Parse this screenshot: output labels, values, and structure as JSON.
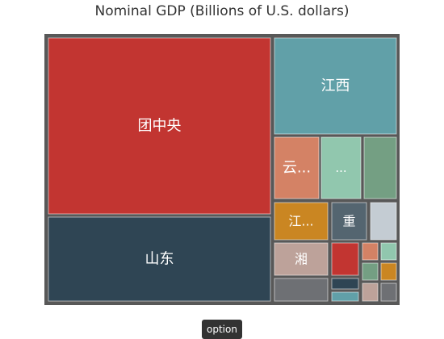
{
  "chart_data": {
    "type": "treemap",
    "title": "Nominal GDP (Billions of U.S. dollars)",
    "tiles": [
      {
        "label": "团中央",
        "color": "#c23531"
      },
      {
        "label": "山东",
        "color": "#2f4554"
      },
      {
        "label": "江西",
        "color": "#61a0a8"
      },
      {
        "label": "云...",
        "color": "#d48265"
      },
      {
        "label": "...",
        "color": "#91c7ae"
      },
      {
        "label": "",
        "color": "#749f83"
      },
      {
        "label": "江...",
        "color": "#ca8622"
      },
      {
        "label": "重",
        "color": "#546570"
      },
      {
        "label": "",
        "color": "#c4ccd3"
      },
      {
        "label": "湘",
        "color": "#bda29a"
      },
      {
        "label": "",
        "color": "#c23531"
      },
      {
        "label": "",
        "color": "#d48265"
      },
      {
        "label": "",
        "color": "#91c7ae"
      },
      {
        "label": "",
        "color": "#749f83"
      },
      {
        "label": "",
        "color": "#ca8622"
      },
      {
        "label": "",
        "color": "#6e7074"
      },
      {
        "label": "",
        "color": "#2f4554"
      },
      {
        "label": "",
        "color": "#61a0a8"
      },
      {
        "label": "",
        "color": "#bda29a"
      },
      {
        "label": "",
        "color": "#6e7074"
      }
    ]
  },
  "controls": {
    "option_label": "option"
  }
}
